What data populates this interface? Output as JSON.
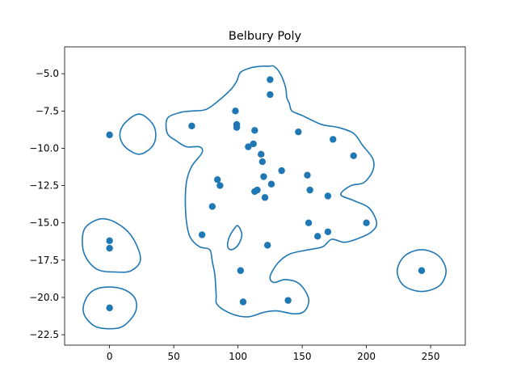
{
  "chart_data": {
    "type": "scatter",
    "title": "Belbury Poly",
    "xlabel": "",
    "ylabel": "",
    "xlim": [
      -35,
      277
    ],
    "ylim": [
      -23.2,
      -3.2
    ],
    "xticks": [
      0,
      50,
      100,
      150,
      200,
      250
    ],
    "yticks": [
      -5.0,
      -7.5,
      -10.0,
      -12.5,
      -15.0,
      -17.5,
      -20.0,
      -22.5
    ],
    "xtick_labels": [
      "0",
      "50",
      "100",
      "150",
      "200",
      "250"
    ],
    "ytick_labels": [
      "−5.0",
      "−7.5",
      "−10.0",
      "−12.5",
      "−15.0",
      "−17.5",
      "−20.0",
      "−22.5"
    ],
    "grid": false,
    "color": "#1f77b4",
    "points": [
      [
        125,
        -5.4
      ],
      [
        125,
        -6.4
      ],
      [
        98,
        -7.5
      ],
      [
        64,
        -8.5
      ],
      [
        99,
        -8.4
      ],
      [
        99,
        -8.6
      ],
      [
        113,
        -8.8
      ],
      [
        147,
        -8.9
      ],
      [
        0,
        -9.1
      ],
      [
        174,
        -9.4
      ],
      [
        112,
        -9.7
      ],
      [
        108,
        -9.9
      ],
      [
        118,
        -10.4
      ],
      [
        190,
        -10.5
      ],
      [
        119,
        -10.9
      ],
      [
        134,
        -11.5
      ],
      [
        120,
        -11.9
      ],
      [
        154,
        -11.8
      ],
      [
        84,
        -12.1
      ],
      [
        86,
        -12.5
      ],
      [
        126,
        -12.4
      ],
      [
        115,
        -12.8
      ],
      [
        113,
        -12.9
      ],
      [
        156,
        -12.8
      ],
      [
        121,
        -13.3
      ],
      [
        170,
        -13.2
      ],
      [
        80,
        -13.9
      ],
      [
        155,
        -15.0
      ],
      [
        200,
        -15.0
      ],
      [
        170,
        -15.6
      ],
      [
        72,
        -15.8
      ],
      [
        162,
        -15.9
      ],
      [
        0,
        -16.2
      ],
      [
        123,
        -16.5
      ],
      [
        0,
        -16.7
      ],
      [
        102,
        -18.2
      ],
      [
        243,
        -18.2
      ],
      [
        139,
        -20.2
      ],
      [
        104,
        -20.3
      ],
      [
        0,
        -20.7
      ]
    ],
    "contours": [
      [
        [
          36,
          -9.1
        ],
        [
          33,
          -9.9
        ],
        [
          23,
          -10.4
        ],
        [
          12,
          -9.9
        ],
        [
          8,
          -9.1
        ],
        [
          12,
          -8.3
        ],
        [
          23,
          -7.7
        ],
        [
          33,
          -8.3
        ],
        [
          36,
          -9.1
        ]
      ],
      [
        [
          0,
          -14.8
        ],
        [
          12,
          -15.4
        ],
        [
          20,
          -16.3
        ],
        [
          24,
          -17.5
        ],
        [
          17,
          -18.2
        ],
        [
          6,
          -18.3
        ],
        [
          -10,
          -18.1
        ],
        [
          -20,
          -17.0
        ],
        [
          -20,
          -15.5
        ],
        [
          -10,
          -14.8
        ],
        [
          0,
          -14.8
        ]
      ],
      [
        [
          0,
          -19.3
        ],
        [
          12,
          -19.5
        ],
        [
          20,
          -20.1
        ],
        [
          20,
          -21.0
        ],
        [
          11,
          -21.9
        ],
        [
          0,
          -22.1
        ],
        [
          -12,
          -21.9
        ],
        [
          -20,
          -21.1
        ],
        [
          -19,
          -20.2
        ],
        [
          -12,
          -19.5
        ],
        [
          0,
          -19.3
        ]
      ],
      [
        [
          243,
          -16.8
        ],
        [
          256,
          -17.2
        ],
        [
          262,
          -18.2
        ],
        [
          257,
          -19.2
        ],
        [
          243,
          -19.6
        ],
        [
          229,
          -19.2
        ],
        [
          224,
          -18.2
        ],
        [
          230,
          -17.2
        ],
        [
          243,
          -16.8
        ]
      ],
      [
        [
          100,
          -15.2
        ],
        [
          103,
          -15.8
        ],
        [
          100,
          -16.5
        ],
        [
          95,
          -16.8
        ],
        [
          92,
          -16.6
        ],
        [
          93,
          -16.0
        ],
        [
          97,
          -15.4
        ],
        [
          100,
          -15.2
        ]
      ],
      [
        [
          124,
          -4.5
        ],
        [
          128,
          -4.5
        ],
        [
          133,
          -5.0
        ],
        [
          137,
          -5.9
        ],
        [
          138,
          -6.6
        ],
        [
          140,
          -7.0
        ],
        [
          142,
          -7.5
        ],
        [
          150,
          -7.8
        ],
        [
          165,
          -8.4
        ],
        [
          178,
          -8.6
        ],
        [
          190,
          -9.0
        ],
        [
          197,
          -9.8
        ],
        [
          205,
          -10.7
        ],
        [
          205,
          -11.5
        ],
        [
          198,
          -12.3
        ],
        [
          188,
          -12.5
        ],
        [
          180,
          -13.1
        ],
        [
          190,
          -13.5
        ],
        [
          202,
          -14.0
        ],
        [
          208,
          -15.0
        ],
        [
          204,
          -15.6
        ],
        [
          195,
          -16.0
        ],
        [
          183,
          -16.3
        ],
        [
          173,
          -16.1
        ],
        [
          166,
          -16.6
        ],
        [
          155,
          -16.8
        ],
        [
          140,
          -17.1
        ],
        [
          131,
          -17.7
        ],
        [
          125,
          -18.6
        ],
        [
          128,
          -19.0
        ],
        [
          137,
          -18.8
        ],
        [
          148,
          -19.1
        ],
        [
          155,
          -20.1
        ],
        [
          152,
          -20.9
        ],
        [
          144,
          -21.1
        ],
        [
          130,
          -20.9
        ],
        [
          120,
          -21.0
        ],
        [
          108,
          -21.3
        ],
        [
          95,
          -21.1
        ],
        [
          84,
          -20.5
        ],
        [
          83,
          -19.8
        ],
        [
          82,
          -18.5
        ],
        [
          80,
          -17.6
        ],
        [
          78,
          -16.8
        ],
        [
          70,
          -16.6
        ],
        [
          63,
          -16.0
        ],
        [
          60,
          -15.0
        ],
        [
          59,
          -13.5
        ],
        [
          60,
          -12.2
        ],
        [
          64,
          -11.2
        ],
        [
          72,
          -10.3
        ],
        [
          70,
          -9.9
        ],
        [
          60,
          -9.9
        ],
        [
          52,
          -9.5
        ],
        [
          45,
          -9.0
        ],
        [
          45,
          -8.0
        ],
        [
          55,
          -7.6
        ],
        [
          64,
          -7.5
        ],
        [
          75,
          -7.4
        ],
        [
          85,
          -6.8
        ],
        [
          95,
          -6.0
        ],
        [
          99,
          -5.5
        ],
        [
          102,
          -4.9
        ],
        [
          110,
          -4.6
        ],
        [
          118,
          -4.5
        ],
        [
          124,
          -4.5
        ]
      ]
    ]
  }
}
